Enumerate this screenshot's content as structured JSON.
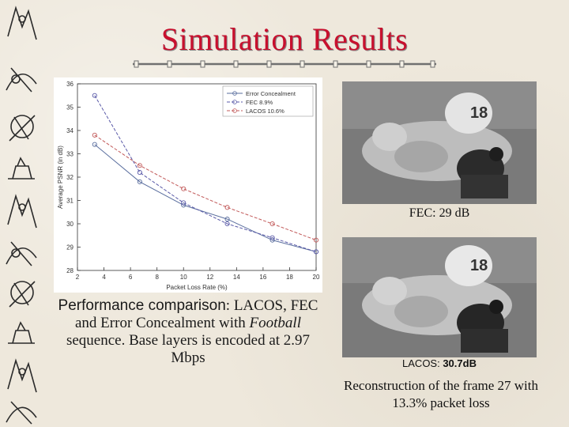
{
  "slide": {
    "title": "Simulation Results"
  },
  "caption": {
    "lead": "Performance comparison",
    "text1": ": LACOS, FEC and Error Concealment  with ",
    "emph": "Football",
    "text2": " sequence. Base layers is encoded at 2.97 Mbps"
  },
  "images": {
    "fec_prefix": "FEC: ",
    "fec_value": "29 dB",
    "lacos_prefix": "LACOS: ",
    "lacos_value": "30.7dB",
    "reconstruction": "Reconstruction of the frame 27 with 13.3% packet loss",
    "jersey_a": "18",
    "jersey_b": "18"
  },
  "chart_data": {
    "type": "line",
    "xlabel": "Packet Loss Rate (%)",
    "ylabel": "Average PSNR (in dB)",
    "xlim": [
      2,
      20
    ],
    "ylim": [
      28,
      36
    ],
    "xticks": [
      2,
      4,
      6,
      8,
      10,
      12,
      14,
      16,
      18,
      20
    ],
    "yticks": [
      28,
      29,
      30,
      31,
      32,
      33,
      34,
      35,
      36
    ],
    "grid": false,
    "legend": "top-right",
    "series": [
      {
        "name": "Error Concealment",
        "color": "#5a6e9e",
        "dash": "solid",
        "x": [
          3.3,
          6.7,
          10.0,
          13.3,
          16.7,
          20.0
        ],
        "y": [
          33.4,
          31.8,
          30.8,
          30.2,
          29.3,
          28.8
        ]
      },
      {
        "name": "FEC 8.9%",
        "color": "#5a5aa8",
        "dash": "dashed",
        "x": [
          3.3,
          6.7,
          10.0,
          13.3,
          16.7,
          20.0
        ],
        "y": [
          35.5,
          32.2,
          30.9,
          30.0,
          29.4,
          28.8
        ]
      },
      {
        "name": "LACOS 10.6%",
        "color": "#c25a5a",
        "dash": "dashed",
        "x": [
          3.3,
          6.7,
          10.0,
          13.3,
          16.7,
          20.0
        ],
        "y": [
          33.8,
          32.5,
          31.5,
          30.7,
          30.0,
          29.3
        ]
      }
    ]
  }
}
